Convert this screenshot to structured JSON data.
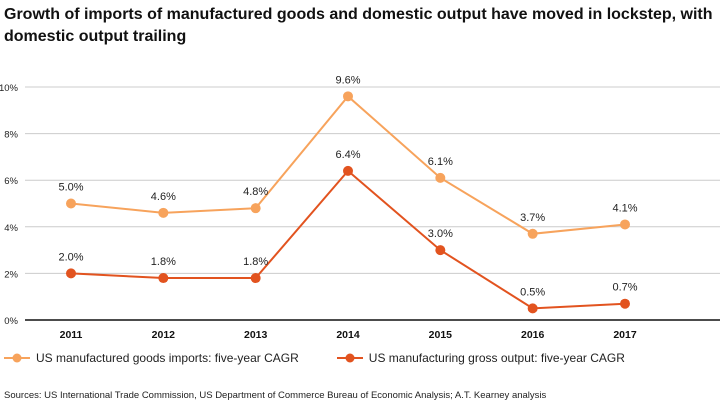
{
  "title": "Growth of imports of manufactured goods and domestic output have moved in lockstep, with domestic output trailing",
  "source": "Sources: US International Trade Commission, US Department of Commerce Bureau of Economic Analysis; A.T. Kearney analysis",
  "chart_data": {
    "type": "line",
    "categories": [
      "2011",
      "2012",
      "2013",
      "2014",
      "2015",
      "2016",
      "2017"
    ],
    "ylim": [
      0,
      10
    ],
    "yticks": [
      0,
      2,
      4,
      6,
      8,
      10
    ],
    "ytick_labels": [
      "0%",
      "2%",
      "4%",
      "6%",
      "8%",
      "10%"
    ],
    "grid": true,
    "legend_position": "bottom-left",
    "series": [
      {
        "name": "US manufactured goods imports: five-year CAGR",
        "color": "#F7A35C",
        "values": [
          5.0,
          4.6,
          4.8,
          9.6,
          6.1,
          3.7,
          4.1
        ],
        "labels": [
          "5.0%",
          "4.6%",
          "4.8%",
          "9.6%",
          "6.1%",
          "3.7%",
          "4.1%"
        ]
      },
      {
        "name": "US manufacturing gross output: five-year CAGR",
        "color": "#E2531F",
        "values": [
          2.0,
          1.8,
          1.8,
          6.4,
          3.0,
          0.5,
          0.7
        ],
        "labels": [
          "2.0%",
          "1.8%",
          "1.8%",
          "6.4%",
          "3.0%",
          "0.5%",
          "0.7%"
        ]
      }
    ]
  }
}
